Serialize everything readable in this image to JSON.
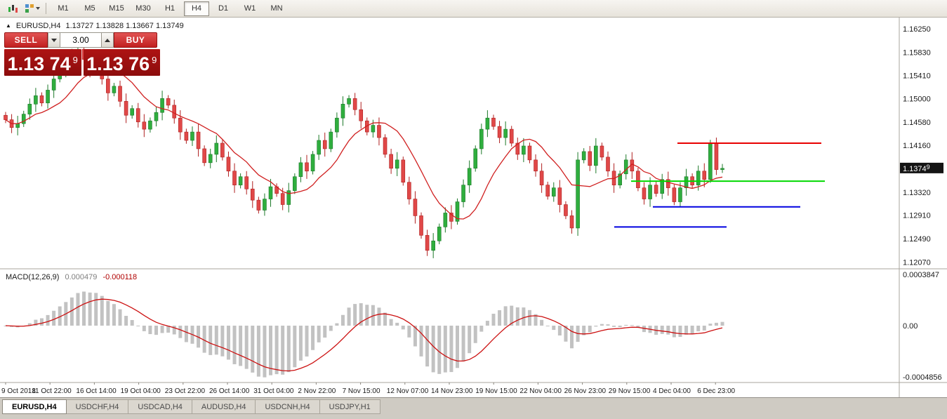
{
  "toolbar": {
    "timeframes": [
      "M1",
      "M5",
      "M15",
      "M30",
      "H1",
      "H4",
      "D1",
      "W1",
      "MN"
    ],
    "active_timeframe": "H4"
  },
  "chart": {
    "title": "EURUSD,H4",
    "ohlc_label": "1.13727 1.13828 1.13667 1.13749",
    "trade_panel": {
      "sell_label": "SELL",
      "buy_label": "BUY",
      "volume": "3.00",
      "sell_price_big": "1.13 74",
      "sell_price_sup": "9",
      "buy_price_big": "1.13 76",
      "buy_price_sup": "9"
    },
    "price_axis": [
      "1.16250",
      "1.15830",
      "1.15410",
      "1.15000",
      "1.14580",
      "1.14160",
      "1.13320",
      "1.12910",
      "1.12490",
      "1.12070"
    ],
    "current_price": "1.13749",
    "time_axis": [
      "9 Oct 2018",
      "11 Oct 22:00",
      "16 Oct 14:00",
      "19 Oct 04:00",
      "23 Oct 22:00",
      "26 Oct 14:00",
      "31 Oct 04:00",
      "2 Nov 22:00",
      "7 Nov 15:00",
      "12 Nov 07:00",
      "14 Nov 23:00",
      "19 Nov 15:00",
      "22 Nov 04:00",
      "26 Nov 23:00",
      "29 Nov 15:00",
      "4 Dec 04:00",
      "6 Dec 23:00"
    ]
  },
  "macd": {
    "label_name": "MACD(12,26,9)",
    "value": "0.000479",
    "signal_value": "-0.000118",
    "axis": [
      "0.0003847",
      "0.00",
      "-0.0004856"
    ]
  },
  "tabs": [
    "EURUSD,H4",
    "USDCHF,H4",
    "USDCAD,H4",
    "AUDUSD,H4",
    "USDCNH,H4",
    "USDJPY,H1"
  ],
  "active_tab": "EURUSD,H4",
  "colors": {
    "bull": "#2fae3e",
    "bull_border": "#1d7a2a",
    "bear": "#e04848",
    "bear_border": "#b02020",
    "ma": "#d02020",
    "hist": "#c2c2c2",
    "signal": "#cc1111",
    "axis_text": "#1a1a1a",
    "separator": "#aaa69d",
    "badge_bg": "#141414",
    "badge_text": "#ffffff"
  },
  "chart_data": {
    "type": "candlestick",
    "symbol": "EURUSD",
    "timeframe": "H4",
    "last_bar": {
      "open": 1.13727,
      "high": 1.13828,
      "low": 1.13667,
      "close": 1.13749
    },
    "y_min": 1.1195,
    "y_max": 1.1645,
    "gridlines": [
      1.1625,
      1.1583,
      1.1541,
      1.15,
      1.1458,
      1.1416,
      1.1332,
      1.1291,
      1.1249,
      1.1207
    ],
    "ma_period": 10,
    "macd_params": {
      "fast": 12,
      "slow": 26,
      "signal": 9
    },
    "lines": [
      {
        "name": "resistance-line-red",
        "color": "#e80000",
        "price": 1.142,
        "x1": 0.753,
        "x2": 0.913
      },
      {
        "name": "support-line-green",
        "color": "#00d800",
        "price": 1.1352,
        "x1": 0.702,
        "x2": 0.917
      },
      {
        "name": "support-line-blue-upper",
        "color": "#0000e0",
        "price": 1.1306,
        "x1": 0.726,
        "x2": 0.89
      },
      {
        "name": "support-line-blue-lower",
        "color": "#0000e0",
        "price": 1.127,
        "x1": 0.683,
        "x2": 0.808
      }
    ],
    "candles": [
      [
        1.147,
        1.1476,
        1.1456,
        1.1462
      ],
      [
        1.1462,
        1.1472,
        1.1438,
        1.1448
      ],
      [
        1.1448,
        1.1469,
        1.1434,
        1.1455
      ],
      [
        1.1455,
        1.1478,
        1.1449,
        1.1472
      ],
      [
        1.1472,
        1.15,
        1.1462,
        1.149
      ],
      [
        1.149,
        1.1519,
        1.1476,
        1.1505
      ],
      [
        1.1505,
        1.1511,
        1.1486,
        1.1492
      ],
      [
        1.1492,
        1.1525,
        1.1482,
        1.1515
      ],
      [
        1.1515,
        1.1549,
        1.1501,
        1.1535
      ],
      [
        1.1535,
        1.1554,
        1.1529,
        1.1548
      ],
      [
        1.1548,
        1.157,
        1.1538,
        1.156
      ],
      [
        1.156,
        1.1589,
        1.1546,
        1.1575
      ],
      [
        1.1575,
        1.1594,
        1.1569,
        1.1588
      ],
      [
        1.1588,
        1.1598,
        1.156,
        1.157
      ],
      [
        1.157,
        1.1584,
        1.1538,
        1.1552
      ],
      [
        1.1552,
        1.1566,
        1.1546,
        1.156
      ],
      [
        1.156,
        1.157,
        1.1525,
        1.1535
      ],
      [
        1.1535,
        1.1549,
        1.1496,
        1.151
      ],
      [
        1.151,
        1.1528,
        1.1504,
        1.1522
      ],
      [
        1.1522,
        1.1532,
        1.1485,
        1.1495
      ],
      [
        1.1495,
        1.1509,
        1.1456,
        1.147
      ],
      [
        1.147,
        1.1488,
        1.1464,
        1.1482
      ],
      [
        1.1482,
        1.1492,
        1.1448,
        1.1458
      ],
      [
        1.1458,
        1.1472,
        1.1431,
        1.1445
      ],
      [
        1.1445,
        1.1466,
        1.1439,
        1.146
      ],
      [
        1.146,
        1.1485,
        1.145,
        1.1475
      ],
      [
        1.1475,
        1.1514,
        1.1461,
        1.15
      ],
      [
        1.15,
        1.1506,
        1.1482,
        1.1488
      ],
      [
        1.1488,
        1.1498,
        1.1455,
        1.1465
      ],
      [
        1.1465,
        1.1479,
        1.1426,
        1.144
      ],
      [
        1.144,
        1.1446,
        1.1419,
        1.1425
      ],
      [
        1.1425,
        1.145,
        1.1415,
        1.144
      ],
      [
        1.144,
        1.1454,
        1.1396,
        1.141
      ],
      [
        1.141,
        1.1416,
        1.1379,
        1.1385
      ],
      [
        1.1385,
        1.141,
        1.1375,
        1.14
      ],
      [
        1.14,
        1.1434,
        1.1386,
        1.142
      ],
      [
        1.142,
        1.1426,
        1.1389,
        1.1395
      ],
      [
        1.1395,
        1.1405,
        1.136,
        1.137
      ],
      [
        1.137,
        1.1384,
        1.1331,
        1.1345
      ],
      [
        1.1345,
        1.1366,
        1.1339,
        1.136
      ],
      [
        1.136,
        1.137,
        1.1328,
        1.1338
      ],
      [
        1.1338,
        1.1352,
        1.1304,
        1.1318
      ],
      [
        1.1318,
        1.1324,
        1.1294,
        1.13
      ],
      [
        1.13,
        1.133,
        1.129,
        1.132
      ],
      [
        1.132,
        1.1356,
        1.1306,
        1.1342
      ],
      [
        1.1342,
        1.1348,
        1.1324,
        1.133
      ],
      [
        1.133,
        1.134,
        1.13,
        1.131
      ],
      [
        1.131,
        1.1349,
        1.1296,
        1.1335
      ],
      [
        1.1335,
        1.1366,
        1.1329,
        1.136
      ],
      [
        1.136,
        1.1395,
        1.135,
        1.1385
      ],
      [
        1.1385,
        1.1399,
        1.1356,
        1.137
      ],
      [
        1.137,
        1.1406,
        1.1364,
        1.14
      ],
      [
        1.14,
        1.1435,
        1.139,
        1.1425
      ],
      [
        1.1425,
        1.1439,
        1.1396,
        1.141
      ],
      [
        1.141,
        1.1446,
        1.1404,
        1.144
      ],
      [
        1.144,
        1.1475,
        1.143,
        1.1465
      ],
      [
        1.1465,
        1.1504,
        1.1451,
        1.149
      ],
      [
        1.149,
        1.1506,
        1.1484,
        1.15
      ],
      [
        1.15,
        1.151,
        1.147,
        1.148
      ],
      [
        1.148,
        1.1494,
        1.1446,
        1.146
      ],
      [
        1.146,
        1.1466,
        1.1434,
        1.144
      ],
      [
        1.144,
        1.1462,
        1.143,
        1.1452
      ],
      [
        1.1452,
        1.1466,
        1.1416,
        1.143
      ],
      [
        1.143,
        1.1436,
        1.1394,
        1.14
      ],
      [
        1.14,
        1.141,
        1.1365,
        1.1375
      ],
      [
        1.1375,
        1.1404,
        1.1361,
        1.139
      ],
      [
        1.139,
        1.1396,
        1.1344,
        1.135
      ],
      [
        1.135,
        1.136,
        1.131,
        1.132
      ],
      [
        1.132,
        1.1334,
        1.1276,
        1.129
      ],
      [
        1.129,
        1.1296,
        1.1249,
        1.1255
      ],
      [
        1.1255,
        1.1265,
        1.1218,
        1.1228
      ],
      [
        1.1228,
        1.1259,
        1.1214,
        1.1245
      ],
      [
        1.1245,
        1.1276,
        1.1239,
        1.127
      ],
      [
        1.127,
        1.1305,
        1.126,
        1.1295
      ],
      [
        1.1295,
        1.1309,
        1.1266,
        1.128
      ],
      [
        1.128,
        1.1321,
        1.1274,
        1.1315
      ],
      [
        1.1315,
        1.1355,
        1.1305,
        1.1345
      ],
      [
        1.1345,
        1.1389,
        1.1331,
        1.1375
      ],
      [
        1.1375,
        1.1416,
        1.1369,
        1.141
      ],
      [
        1.141,
        1.1455,
        1.14,
        1.1445
      ],
      [
        1.1445,
        1.1479,
        1.1431,
        1.1465
      ],
      [
        1.1465,
        1.1471,
        1.1444,
        1.145
      ],
      [
        1.145,
        1.146,
        1.142,
        1.143
      ],
      [
        1.143,
        1.1459,
        1.1416,
        1.1445
      ],
      [
        1.1445,
        1.1451,
        1.1414,
        1.142
      ],
      [
        1.142,
        1.143,
        1.139,
        1.14
      ],
      [
        1.14,
        1.1429,
        1.1386,
        1.1415
      ],
      [
        1.1415,
        1.1421,
        1.1384,
        1.139
      ],
      [
        1.139,
        1.14,
        1.136,
        1.137
      ],
      [
        1.137,
        1.1384,
        1.1331,
        1.1345
      ],
      [
        1.1345,
        1.1351,
        1.1319,
        1.1325
      ],
      [
        1.1325,
        1.135,
        1.1315,
        1.134
      ],
      [
        1.134,
        1.1354,
        1.1296,
        1.131
      ],
      [
        1.131,
        1.1316,
        1.1284,
        1.129
      ],
      [
        1.129,
        1.13,
        1.1258,
        1.1268
      ],
      [
        1.1268,
        1.1404,
        1.1254,
        1.139
      ],
      [
        1.139,
        1.1411,
        1.1384,
        1.1405
      ],
      [
        1.1405,
        1.1415,
        1.137,
        1.138
      ],
      [
        1.138,
        1.1429,
        1.1366,
        1.1415
      ],
      [
        1.1415,
        1.1421,
        1.1389,
        1.1395
      ],
      [
        1.1395,
        1.1405,
        1.136,
        1.137
      ],
      [
        1.137,
        1.1384,
        1.1331,
        1.1345
      ],
      [
        1.1345,
        1.1371,
        1.1339,
        1.1365
      ],
      [
        1.1365,
        1.14,
        1.1355,
        1.139
      ],
      [
        1.139,
        1.1404,
        1.1356,
        1.137
      ],
      [
        1.137,
        1.1376,
        1.1334,
        1.134
      ],
      [
        1.134,
        1.135,
        1.131,
        1.132
      ],
      [
        1.132,
        1.1359,
        1.1306,
        1.1345
      ],
      [
        1.1345,
        1.1351,
        1.1324,
        1.133
      ],
      [
        1.133,
        1.1365,
        1.132,
        1.1355
      ],
      [
        1.1355,
        1.1369,
        1.1326,
        1.134
      ],
      [
        1.134,
        1.1346,
        1.1309,
        1.1315
      ],
      [
        1.1315,
        1.135,
        1.1305,
        1.134
      ],
      [
        1.134,
        1.1374,
        1.1326,
        1.136
      ],
      [
        1.136,
        1.1366,
        1.1339,
        1.1345
      ],
      [
        1.1345,
        1.138,
        1.1335,
        1.137
      ],
      [
        1.137,
        1.1384,
        1.1341,
        1.1355
      ],
      [
        1.1355,
        1.1426,
        1.1349,
        1.142
      ],
      [
        1.142,
        1.143,
        1.1363,
        1.13727
      ],
      [
        1.13727,
        1.13828,
        1.13667,
        1.13749
      ]
    ]
  }
}
